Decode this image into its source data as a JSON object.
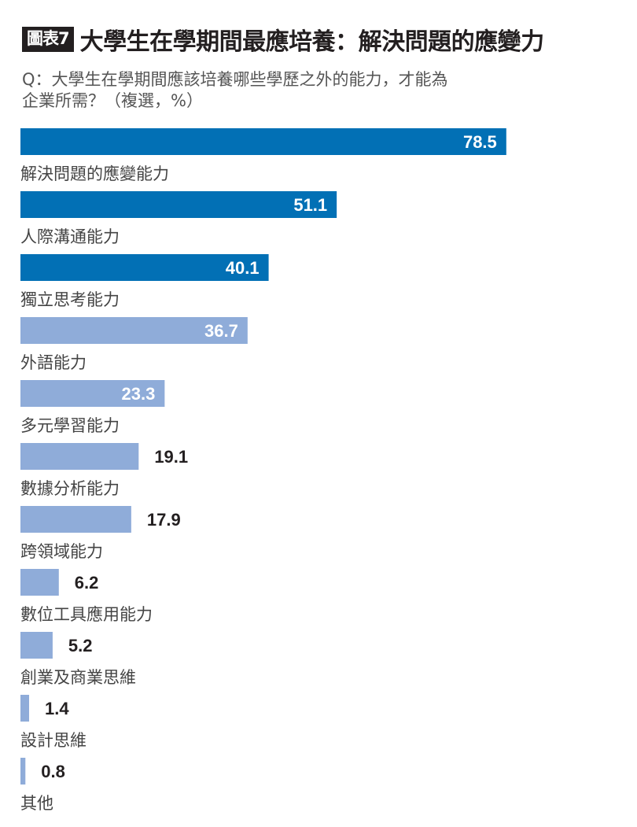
{
  "header": {
    "tag": "圖表7",
    "title": "大學生在學期間最應培養：解決問題的應變力",
    "subtitle_line1": "Q：大學生在學期間應該培養哪些學歷之外的能力，才能為",
    "subtitle_line2": "企業所需？（複選，%）"
  },
  "colors": {
    "dark_bar": "#0270b5",
    "light_bar": "#8facd9",
    "value_inside": "#ffffff",
    "value_outside": "#231f20"
  },
  "chart_data": {
    "type": "bar",
    "orientation": "horizontal",
    "categories": [
      "解決問題的應變能力",
      "人際溝通能力",
      "獨立思考能力",
      "外語能力",
      "多元學習能力",
      "數據分析能力",
      "跨領域能力",
      "數位工具應用能力",
      "創業及商業思維",
      "設計思維",
      "其他"
    ],
    "values": [
      78.5,
      51.1,
      40.1,
      36.7,
      23.3,
      19.1,
      17.9,
      6.2,
      5.2,
      1.4,
      0.8
    ],
    "value_labels": [
      "78.5",
      "51.1",
      "40.1",
      "36.7",
      "23.3",
      "19.1",
      "17.9",
      "6.2",
      "5.2",
      "1.4",
      "0.8"
    ],
    "bar_colors": [
      "dark",
      "dark",
      "dark",
      "light",
      "light",
      "light",
      "light",
      "light",
      "light",
      "light",
      "light"
    ],
    "value_label_position": [
      "inside",
      "inside",
      "inside",
      "inside",
      "inside",
      "outside",
      "outside",
      "outside",
      "outside",
      "outside",
      "outside"
    ],
    "xlim": [
      0,
      100
    ]
  }
}
